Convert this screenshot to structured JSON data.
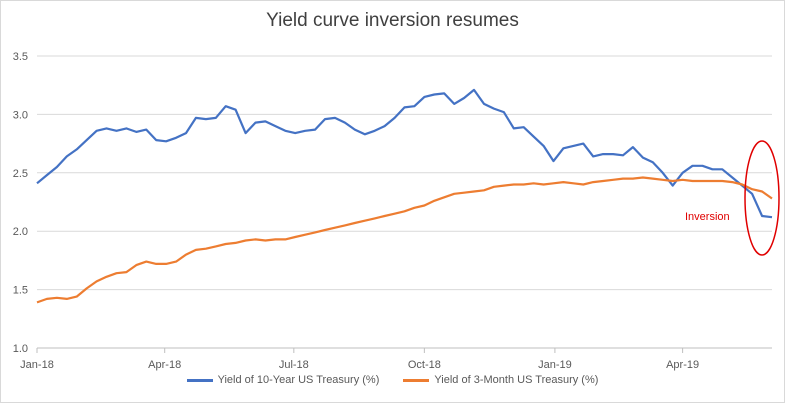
{
  "chart_data": {
    "type": "line",
    "title": "Yield curve inversion resumes",
    "xlabel": "",
    "ylabel": "",
    "ylim": [
      1.0,
      3.5
    ],
    "y_ticks": [
      "1.0",
      "1.5",
      "2.0",
      "2.5",
      "3.0",
      "3.5"
    ],
    "x_ticks": [
      "Jan-18",
      "Apr-18",
      "Jul-18",
      "Oct-18",
      "Jan-19",
      "Apr-19"
    ],
    "x_range": [
      "2018-01-01",
      "2019-06-03"
    ],
    "grid": "horizontal",
    "legend_position": "bottom",
    "annotation": "Inversion",
    "series": [
      {
        "name": "Yield of 10-Year US Treasury (%)",
        "color": "#4472c4",
        "points": [
          [
            "2018-01-01",
            2.41
          ],
          [
            "2018-01-08",
            2.48
          ],
          [
            "2018-01-15",
            2.55
          ],
          [
            "2018-01-22",
            2.64
          ],
          [
            "2018-01-29",
            2.7
          ],
          [
            "2018-02-05",
            2.78
          ],
          [
            "2018-02-12",
            2.86
          ],
          [
            "2018-02-19",
            2.88
          ],
          [
            "2018-02-26",
            2.86
          ],
          [
            "2018-03-05",
            2.88
          ],
          [
            "2018-03-12",
            2.85
          ],
          [
            "2018-03-19",
            2.87
          ],
          [
            "2018-03-26",
            2.78
          ],
          [
            "2018-04-02",
            2.77
          ],
          [
            "2018-04-09",
            2.8
          ],
          [
            "2018-04-16",
            2.84
          ],
          [
            "2018-04-23",
            2.97
          ],
          [
            "2018-04-30",
            2.96
          ],
          [
            "2018-05-07",
            2.97
          ],
          [
            "2018-05-14",
            3.07
          ],
          [
            "2018-05-21",
            3.04
          ],
          [
            "2018-05-28",
            2.84
          ],
          [
            "2018-06-04",
            2.93
          ],
          [
            "2018-06-11",
            2.94
          ],
          [
            "2018-06-18",
            2.9
          ],
          [
            "2018-06-25",
            2.86
          ],
          [
            "2018-07-02",
            2.84
          ],
          [
            "2018-07-09",
            2.86
          ],
          [
            "2018-07-16",
            2.87
          ],
          [
            "2018-07-23",
            2.96
          ],
          [
            "2018-07-30",
            2.97
          ],
          [
            "2018-08-06",
            2.93
          ],
          [
            "2018-08-13",
            2.87
          ],
          [
            "2018-08-20",
            2.83
          ],
          [
            "2018-08-27",
            2.86
          ],
          [
            "2018-09-03",
            2.9
          ],
          [
            "2018-09-10",
            2.97
          ],
          [
            "2018-09-17",
            3.06
          ],
          [
            "2018-09-24",
            3.07
          ],
          [
            "2018-10-01",
            3.15
          ],
          [
            "2018-10-08",
            3.17
          ],
          [
            "2018-10-15",
            3.18
          ],
          [
            "2018-10-22",
            3.09
          ],
          [
            "2018-10-29",
            3.14
          ],
          [
            "2018-11-05",
            3.21
          ],
          [
            "2018-11-12",
            3.09
          ],
          [
            "2018-11-19",
            3.05
          ],
          [
            "2018-11-26",
            3.02
          ],
          [
            "2018-12-03",
            2.88
          ],
          [
            "2018-12-10",
            2.89
          ],
          [
            "2018-12-17",
            2.81
          ],
          [
            "2018-12-24",
            2.73
          ],
          [
            "2018-12-31",
            2.6
          ],
          [
            "2019-01-07",
            2.71
          ],
          [
            "2019-01-14",
            2.73
          ],
          [
            "2019-01-21",
            2.75
          ],
          [
            "2019-01-28",
            2.64
          ],
          [
            "2019-02-04",
            2.66
          ],
          [
            "2019-02-11",
            2.66
          ],
          [
            "2019-02-18",
            2.65
          ],
          [
            "2019-02-25",
            2.72
          ],
          [
            "2019-03-04",
            2.63
          ],
          [
            "2019-03-11",
            2.59
          ],
          [
            "2019-03-18",
            2.5
          ],
          [
            "2019-03-25",
            2.39
          ],
          [
            "2019-04-01",
            2.5
          ],
          [
            "2019-04-08",
            2.56
          ],
          [
            "2019-04-15",
            2.56
          ],
          [
            "2019-04-22",
            2.53
          ],
          [
            "2019-04-29",
            2.53
          ],
          [
            "2019-05-06",
            2.46
          ],
          [
            "2019-05-13",
            2.39
          ],
          [
            "2019-05-20",
            2.32
          ],
          [
            "2019-05-27",
            2.13
          ],
          [
            "2019-06-03",
            2.12
          ]
        ]
      },
      {
        "name": "Yield of 3-Month US Treasury (%)",
        "color": "#ed7d31",
        "points": [
          [
            "2018-01-01",
            1.39
          ],
          [
            "2018-01-08",
            1.42
          ],
          [
            "2018-01-15",
            1.43
          ],
          [
            "2018-01-22",
            1.42
          ],
          [
            "2018-01-29",
            1.44
          ],
          [
            "2018-02-05",
            1.51
          ],
          [
            "2018-02-12",
            1.57
          ],
          [
            "2018-02-19",
            1.61
          ],
          [
            "2018-02-26",
            1.64
          ],
          [
            "2018-03-05",
            1.65
          ],
          [
            "2018-03-12",
            1.71
          ],
          [
            "2018-03-19",
            1.74
          ],
          [
            "2018-03-26",
            1.72
          ],
          [
            "2018-04-02",
            1.72
          ],
          [
            "2018-04-09",
            1.74
          ],
          [
            "2018-04-16",
            1.8
          ],
          [
            "2018-04-23",
            1.84
          ],
          [
            "2018-04-30",
            1.85
          ],
          [
            "2018-05-07",
            1.87
          ],
          [
            "2018-05-14",
            1.89
          ],
          [
            "2018-05-21",
            1.9
          ],
          [
            "2018-05-28",
            1.92
          ],
          [
            "2018-06-04",
            1.93
          ],
          [
            "2018-06-11",
            1.92
          ],
          [
            "2018-06-18",
            1.93
          ],
          [
            "2018-06-25",
            1.93
          ],
          [
            "2018-07-02",
            1.95
          ],
          [
            "2018-07-09",
            1.97
          ],
          [
            "2018-07-16",
            1.99
          ],
          [
            "2018-07-23",
            2.01
          ],
          [
            "2018-07-30",
            2.03
          ],
          [
            "2018-08-06",
            2.05
          ],
          [
            "2018-08-13",
            2.07
          ],
          [
            "2018-08-20",
            2.09
          ],
          [
            "2018-08-27",
            2.11
          ],
          [
            "2018-09-03",
            2.13
          ],
          [
            "2018-09-10",
            2.15
          ],
          [
            "2018-09-17",
            2.17
          ],
          [
            "2018-09-24",
            2.2
          ],
          [
            "2018-10-01",
            2.22
          ],
          [
            "2018-10-08",
            2.26
          ],
          [
            "2018-10-15",
            2.29
          ],
          [
            "2018-10-22",
            2.32
          ],
          [
            "2018-10-29",
            2.33
          ],
          [
            "2018-11-05",
            2.34
          ],
          [
            "2018-11-12",
            2.35
          ],
          [
            "2018-11-19",
            2.38
          ],
          [
            "2018-11-26",
            2.39
          ],
          [
            "2018-12-03",
            2.4
          ],
          [
            "2018-12-10",
            2.4
          ],
          [
            "2018-12-17",
            2.41
          ],
          [
            "2018-12-24",
            2.4
          ],
          [
            "2018-12-31",
            2.41
          ],
          [
            "2019-01-07",
            2.42
          ],
          [
            "2019-01-14",
            2.41
          ],
          [
            "2019-01-21",
            2.4
          ],
          [
            "2019-01-28",
            2.42
          ],
          [
            "2019-02-04",
            2.43
          ],
          [
            "2019-02-11",
            2.44
          ],
          [
            "2019-02-18",
            2.45
          ],
          [
            "2019-02-25",
            2.45
          ],
          [
            "2019-03-04",
            2.46
          ],
          [
            "2019-03-11",
            2.45
          ],
          [
            "2019-03-18",
            2.44
          ],
          [
            "2019-03-25",
            2.43
          ],
          [
            "2019-04-01",
            2.44
          ],
          [
            "2019-04-08",
            2.43
          ],
          [
            "2019-04-15",
            2.43
          ],
          [
            "2019-04-22",
            2.43
          ],
          [
            "2019-04-29",
            2.43
          ],
          [
            "2019-05-06",
            2.42
          ],
          [
            "2019-05-13",
            2.4
          ],
          [
            "2019-05-20",
            2.36
          ],
          [
            "2019-05-27",
            2.34
          ],
          [
            "2019-06-03",
            2.28
          ]
        ]
      }
    ]
  }
}
